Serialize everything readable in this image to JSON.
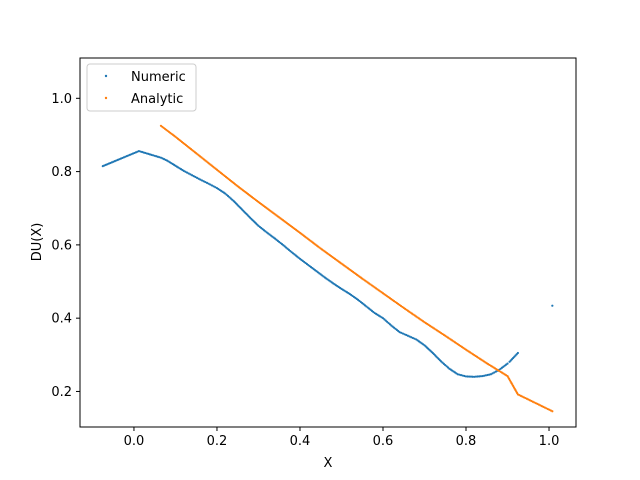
{
  "chart_data": {
    "type": "scatter",
    "xlabel": "X",
    "ylabel": "DU(X)",
    "xlim": [
      -0.13,
      1.065
    ],
    "ylim": [
      0.103,
      1.11
    ],
    "xticks": [
      0.0,
      0.2,
      0.4,
      0.6,
      0.8,
      1.0
    ],
    "yticks": [
      0.2,
      0.4,
      0.6,
      0.8,
      1.0
    ],
    "xtick_labels": [
      "0.0",
      "0.2",
      "0.4",
      "0.6",
      "0.8",
      "1.0"
    ],
    "ytick_labels": [
      "0.2",
      "0.4",
      "0.6",
      "0.8",
      "1.0"
    ],
    "grid": false,
    "legend": {
      "position": "top-left"
    },
    "series": [
      {
        "name": "Numeric",
        "color": "#1f77b4",
        "points": [
          [
            -0.075,
            0.815
          ],
          [
            0.012,
            0.856
          ],
          [
            0.065,
            0.838
          ],
          [
            0.08,
            0.83
          ],
          [
            0.1,
            0.816
          ],
          [
            0.12,
            0.802
          ],
          [
            0.14,
            0.79
          ],
          [
            0.16,
            0.778
          ],
          [
            0.18,
            0.767
          ],
          [
            0.2,
            0.755
          ],
          [
            0.22,
            0.74
          ],
          [
            0.24,
            0.72
          ],
          [
            0.26,
            0.697
          ],
          [
            0.28,
            0.674
          ],
          [
            0.3,
            0.652
          ],
          [
            0.32,
            0.634
          ],
          [
            0.34,
            0.617
          ],
          [
            0.36,
            0.599
          ],
          [
            0.38,
            0.58
          ],
          [
            0.4,
            0.562
          ],
          [
            0.42,
            0.545
          ],
          [
            0.44,
            0.528
          ],
          [
            0.46,
            0.511
          ],
          [
            0.48,
            0.495
          ],
          [
            0.5,
            0.48
          ],
          [
            0.52,
            0.466
          ],
          [
            0.54,
            0.45
          ],
          [
            0.56,
            0.432
          ],
          [
            0.58,
            0.414
          ],
          [
            0.6,
            0.4
          ],
          [
            0.62,
            0.38
          ],
          [
            0.64,
            0.362
          ],
          [
            0.66,
            0.352
          ],
          [
            0.68,
            0.342
          ],
          [
            0.7,
            0.326
          ],
          [
            0.72,
            0.305
          ],
          [
            0.74,
            0.282
          ],
          [
            0.76,
            0.262
          ],
          [
            0.78,
            0.247
          ],
          [
            0.8,
            0.241
          ],
          [
            0.82,
            0.24
          ],
          [
            0.84,
            0.242
          ],
          [
            0.86,
            0.247
          ],
          [
            0.88,
            0.259
          ],
          [
            0.9,
            0.276
          ],
          [
            0.905,
            0.281
          ],
          [
            0.925,
            0.305
          ],
          [
            1.008,
            0.434
          ]
        ]
      },
      {
        "name": "Analytic",
        "color": "#ff7f0e",
        "points": [
          [
            0.065,
            0.925
          ],
          [
            0.1,
            0.895
          ],
          [
            0.15,
            0.85
          ],
          [
            0.2,
            0.805
          ],
          [
            0.25,
            0.76
          ],
          [
            0.3,
            0.717
          ],
          [
            0.35,
            0.675
          ],
          [
            0.4,
            0.633
          ],
          [
            0.45,
            0.59
          ],
          [
            0.5,
            0.549
          ],
          [
            0.55,
            0.508
          ],
          [
            0.6,
            0.468
          ],
          [
            0.65,
            0.428
          ],
          [
            0.7,
            0.389
          ],
          [
            0.75,
            0.352
          ],
          [
            0.8,
            0.314
          ],
          [
            0.85,
            0.277
          ],
          [
            0.9,
            0.242
          ],
          [
            0.925,
            0.192
          ],
          [
            1.008,
            0.146
          ]
        ]
      }
    ]
  }
}
